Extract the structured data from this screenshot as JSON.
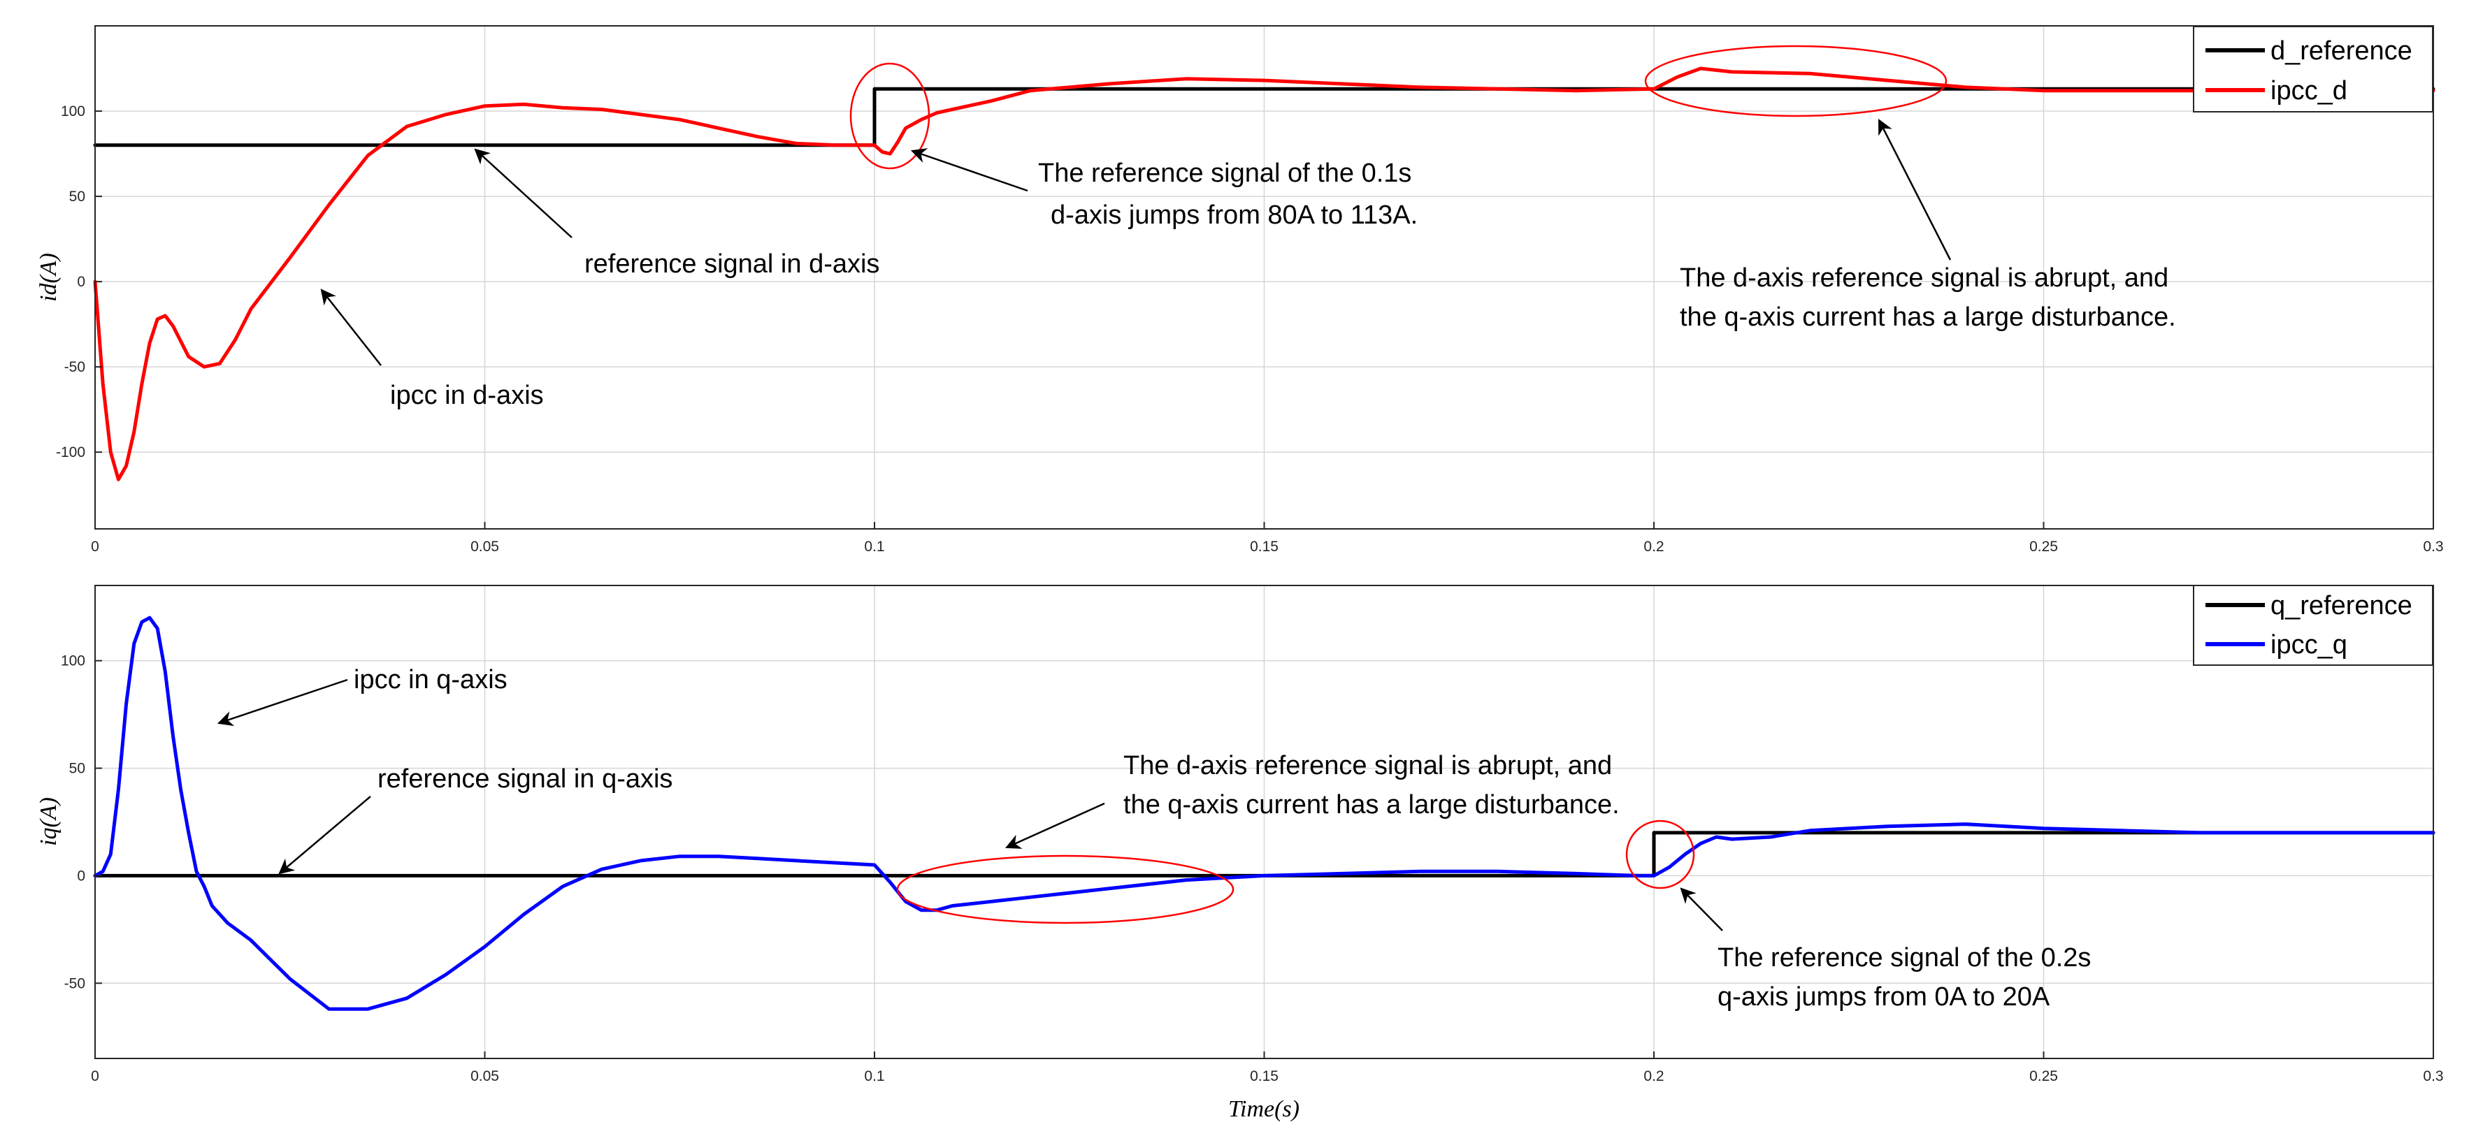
{
  "chart_data": [
    {
      "type": "line",
      "xlabel": "",
      "ylabel": "id(A)",
      "xlim": [
        0,
        0.3
      ],
      "ylim": [
        -145,
        150
      ],
      "xticks": [
        0,
        0.05,
        0.1,
        0.15,
        0.2,
        0.25,
        0.3
      ],
      "xtick_labels": [
        "0",
        "0.05",
        "0.1",
        "0.15",
        "0.2",
        "0.25",
        "0.3"
      ],
      "yticks": [
        -100,
        -50,
        0,
        50,
        100
      ],
      "ytick_labels": [
        "-100",
        "-50",
        "0",
        "50",
        "100"
      ],
      "grid": true,
      "legend": "top-right",
      "series": [
        {
          "name": "d_reference",
          "color": "#000000",
          "step": true,
          "x": [
            0,
            0.1,
            0.1,
            0.3
          ],
          "y": [
            80,
            80,
            113,
            113
          ]
        },
        {
          "name": "ipcc_d",
          "color": "#ff0000",
          "x": [
            0,
            0.001,
            0.002,
            0.003,
            0.004,
            0.005,
            0.006,
            0.007,
            0.008,
            0.009,
            0.01,
            0.012,
            0.014,
            0.016,
            0.018,
            0.02,
            0.025,
            0.03,
            0.035,
            0.04,
            0.045,
            0.05,
            0.055,
            0.06,
            0.065,
            0.07,
            0.075,
            0.08,
            0.085,
            0.09,
            0.095,
            0.1,
            0.101,
            0.102,
            0.103,
            0.104,
            0.106,
            0.108,
            0.11,
            0.115,
            0.12,
            0.13,
            0.14,
            0.15,
            0.16,
            0.17,
            0.18,
            0.19,
            0.2,
            0.203,
            0.206,
            0.21,
            0.22,
            0.23,
            0.24,
            0.25,
            0.26,
            0.27,
            0.28,
            0.29,
            0.3
          ],
          "y": [
            0,
            -60,
            -100,
            -116,
            -108,
            -88,
            -60,
            -36,
            -22,
            -20,
            -26,
            -44,
            -50,
            -48,
            -34,
            -16,
            14,
            45,
            74,
            91,
            98,
            103,
            104,
            102,
            101,
            98,
            95,
            90,
            85,
            81,
            80,
            80,
            76,
            75,
            82,
            90,
            95,
            99,
            101,
            106,
            112,
            116,
            119,
            118,
            116,
            114,
            113,
            112,
            113,
            120,
            125,
            123,
            122,
            118,
            114,
            112,
            112,
            112,
            112,
            112,
            112
          ]
        }
      ]
    },
    {
      "type": "line",
      "xlabel": "Time(s)",
      "ylabel": "iq(A)",
      "xlim": [
        0,
        0.3
      ],
      "ylim": [
        -85,
        135
      ],
      "xticks": [
        0,
        0.05,
        0.1,
        0.15,
        0.2,
        0.25,
        0.3
      ],
      "xtick_labels": [
        "0",
        "0.05",
        "0.1",
        "0.15",
        "0.2",
        "0.25",
        "0.3"
      ],
      "yticks": [
        -50,
        0,
        50,
        100
      ],
      "ytick_labels": [
        "-50",
        "0",
        "50",
        "100"
      ],
      "grid": true,
      "legend": "top-right",
      "series": [
        {
          "name": "q_reference",
          "color": "#000000",
          "step": true,
          "x": [
            0,
            0.2,
            0.2,
            0.3
          ],
          "y": [
            0,
            0,
            20,
            20
          ]
        },
        {
          "name": "ipcc_q",
          "color": "#0000ff",
          "x": [
            0,
            0.001,
            0.002,
            0.003,
            0.004,
            0.005,
            0.006,
            0.007,
            0.008,
            0.009,
            0.01,
            0.011,
            0.012,
            0.013,
            0.014,
            0.015,
            0.017,
            0.02,
            0.025,
            0.03,
            0.035,
            0.04,
            0.045,
            0.05,
            0.055,
            0.06,
            0.065,
            0.07,
            0.075,
            0.08,
            0.085,
            0.09,
            0.095,
            0.1,
            0.102,
            0.104,
            0.106,
            0.108,
            0.11,
            0.115,
            0.12,
            0.13,
            0.14,
            0.15,
            0.16,
            0.17,
            0.18,
            0.19,
            0.198,
            0.2,
            0.202,
            0.204,
            0.206,
            0.208,
            0.21,
            0.215,
            0.22,
            0.23,
            0.24,
            0.25,
            0.26,
            0.27,
            0.28,
            0.29,
            0.3
          ],
          "y": [
            0,
            2,
            10,
            40,
            80,
            108,
            118,
            120,
            115,
            95,
            65,
            40,
            20,
            2,
            -5,
            -14,
            -22,
            -30,
            -48,
            -62,
            -62,
            -57,
            -46,
            -33,
            -18,
            -5,
            3,
            7,
            9,
            9,
            8,
            7,
            6,
            5,
            -3,
            -12,
            -16,
            -16,
            -14,
            -12,
            -10,
            -6,
            -2,
            0,
            1,
            2,
            2,
            1,
            0,
            0,
            4,
            10,
            15,
            18,
            17,
            18,
            21,
            23,
            24,
            22,
            21,
            20,
            20,
            20,
            20
          ]
        }
      ]
    }
  ],
  "annotations": {
    "top_d_ref": "reference signal in d-axis",
    "top_ipcc": "ipcc in d-axis",
    "top_jump_line1": "The reference signal of the 0.1s",
    "top_jump_line2": "d-axis jumps from 80A to 113A.",
    "top_dist_line1": "The d-axis reference signal is abrupt, and",
    "top_dist_line2": "the q-axis current has a large disturbance.",
    "bot_ipcc": "ipcc in q-axis",
    "bot_q_ref": "reference signal in q-axis",
    "bot_dist_line1": "The d-axis reference signal is abrupt, and",
    "bot_dist_line2": "the q-axis current has a large disturbance.",
    "bot_jump_line1": "The reference signal of the 0.2s",
    "bot_jump_line2": "q-axis jumps from 0A to 20A"
  },
  "colors": {
    "reference": "#000000",
    "ipcc_d": "#ff0000",
    "ipcc_q": "#0000ff",
    "highlight_ellipse": "#ff0000"
  }
}
